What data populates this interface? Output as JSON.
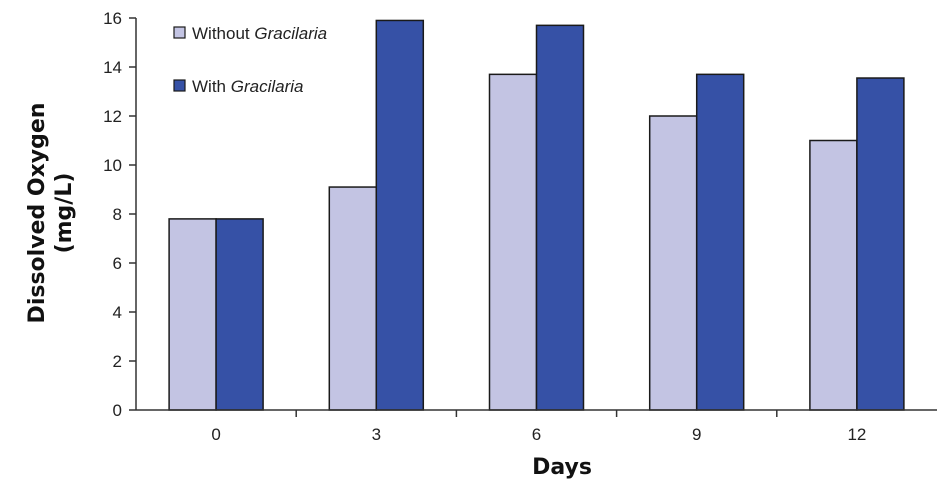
{
  "chart_data": {
    "type": "bar",
    "categories": [
      "0",
      "3",
      "6",
      "9",
      "12"
    ],
    "series": [
      {
        "name": "Without Gracilaria",
        "name_prefix": "Without ",
        "name_italic": "Gracilaria",
        "color": "#c3c4e3",
        "values": [
          7.8,
          9.1,
          13.7,
          12.0,
          11.0
        ]
      },
      {
        "name": "With Gracilaria",
        "name_prefix": "With ",
        "name_italic": "Gracilaria",
        "color": "#3651a6",
        "values": [
          7.8,
          15.9,
          15.7,
          13.7,
          13.55
        ]
      }
    ],
    "xlabel": "Days",
    "ylabel_line1": "Dissolved Oxygen",
    "ylabel_line2": "(mg/L)",
    "ylim": [
      0,
      16
    ],
    "yticks": [
      "0",
      "2",
      "4",
      "6",
      "8",
      "10",
      "12",
      "14",
      "16"
    ],
    "grid": false,
    "legend_position": "top-left"
  }
}
